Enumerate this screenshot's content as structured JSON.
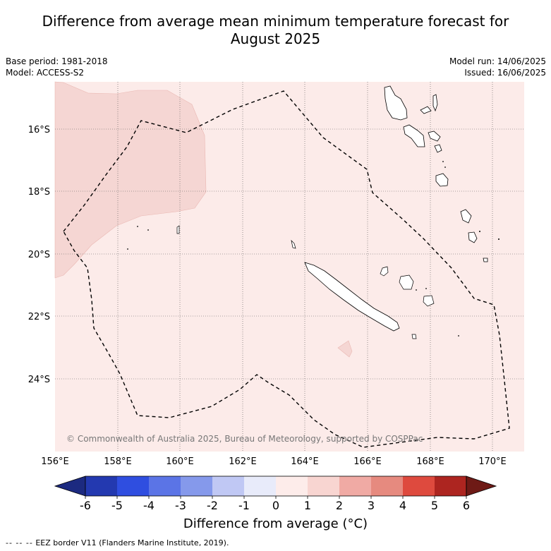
{
  "title": {
    "line1": "Difference from average mean minimum temperature forecast for",
    "line2": "August 2025"
  },
  "meta_left": {
    "base_period": "Base period: 1981-2018",
    "model": "Model: ACCESS-S2"
  },
  "meta_right": {
    "model_run": "Model run: 14/06/2025",
    "issued": "Issued: 16/06/2025"
  },
  "map": {
    "lat_labels": [
      "16°S",
      "18°S",
      "20°S",
      "22°S",
      "24°S"
    ],
    "lon_labels": [
      "156°E",
      "158°E",
      "160°E",
      "162°E",
      "164°E",
      "166°E",
      "168°E",
      "170°E"
    ],
    "copyright": "© Commonwealth of Australia 2025, Bureau of Meteorology, supported by COSPPac",
    "background_color": "#fcebe9",
    "anomaly_color": "#f5d6d3",
    "lat_range": [
      -26.3,
      -14.5
    ],
    "lon_range": [
      156,
      171
    ]
  },
  "colorbar": {
    "ticks": [
      "-6",
      "-5",
      "-4",
      "-3",
      "-2",
      "-1",
      "0",
      "1",
      "2",
      "3",
      "4",
      "5",
      "6"
    ],
    "colors": [
      "#1c2a80",
      "#2339b0",
      "#2f4ee0",
      "#5b74e6",
      "#8599eb",
      "#c0c8f4",
      "#e8ebfa",
      "#fdecea",
      "#f8d5d1",
      "#f0aaa4",
      "#e68a7f",
      "#de4a3e",
      "#ad2520",
      "#6e1a16"
    ],
    "title": "Difference from average (°C)"
  },
  "footer": {
    "dash": "--  --  --",
    "text": "EEZ border V11 (Flanders Marine Institute, 2019)."
  }
}
